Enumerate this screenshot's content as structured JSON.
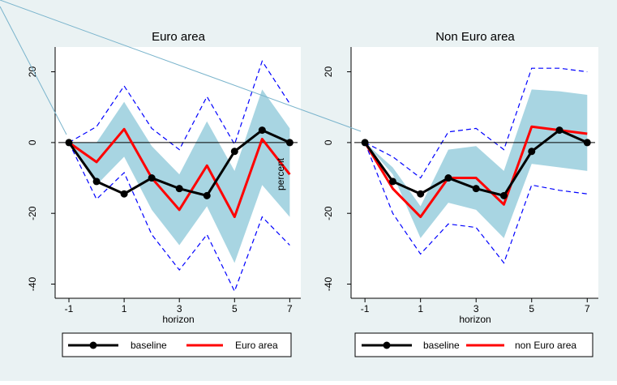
{
  "chart_data": [
    {
      "type": "line",
      "title": "Euro area",
      "xlabel": "horizon",
      "ylabel": "percent",
      "xlim": [
        -1.5,
        7.4
      ],
      "ylim": [
        -44,
        27
      ],
      "x_ticks": [
        -1,
        1,
        3,
        5,
        7
      ],
      "y_ticks": [
        20,
        0,
        -20,
        -40
      ],
      "x": [
        -1,
        0,
        1,
        2,
        3,
        4,
        5,
        6,
        7
      ],
      "series": [
        {
          "name": "baseline",
          "color": "#000000",
          "values": [
            0,
            -11,
            -14.5,
            -10,
            -13,
            -15,
            -2.5,
            3.5,
            0
          ]
        },
        {
          "name": "Euro area",
          "color": "#ff0000",
          "values": [
            0,
            -5.5,
            3.8,
            -10,
            -19,
            -6.5,
            -21,
            1,
            -9
          ]
        }
      ],
      "band": {
        "color": "#a8d5e2",
        "lower": [
          0,
          -12,
          -4,
          -19,
          -29,
          -18,
          -34,
          -12,
          -21
        ],
        "upper": [
          0,
          0,
          11.5,
          -1,
          -9,
          6,
          -8,
          15,
          4
        ]
      },
      "dashed_band": {
        "color": "#0000ff",
        "lower": [
          0,
          -16,
          -8.5,
          -26,
          -36,
          -26,
          -42,
          -21,
          -29
        ],
        "upper": [
          0,
          4.5,
          16,
          4,
          -2,
          13,
          -0.5,
          23,
          11
        ]
      },
      "legend": [
        "baseline",
        "Euro area"
      ],
      "legend_position": "bottom",
      "grid": false
    },
    {
      "type": "line",
      "title": "Non Euro area",
      "xlabel": "horizon",
      "ylabel": "",
      "xlim": [
        -1.5,
        7.4
      ],
      "ylim": [
        -44,
        27
      ],
      "x_ticks": [
        -1,
        1,
        3,
        5,
        7
      ],
      "y_ticks": [
        20,
        0,
        -20,
        -40
      ],
      "x": [
        -1,
        0,
        1,
        2,
        3,
        4,
        5,
        6,
        7
      ],
      "series": [
        {
          "name": "baseline",
          "color": "#000000",
          "values": [
            0,
            -11,
            -14.5,
            -10,
            -13,
            -15,
            -2.5,
            3.5,
            0
          ]
        },
        {
          "name": "non Euro area",
          "color": "#ff0000",
          "values": [
            0,
            -13,
            -21,
            -10,
            -10,
            -17.5,
            4.5,
            3.5,
            2.5
          ]
        }
      ],
      "band": {
        "color": "#a8d5e2",
        "lower": [
          0,
          -9,
          -27,
          -17,
          -19,
          -27,
          -6,
          -7,
          -8
        ],
        "upper": [
          0,
          -7,
          -18,
          -2,
          -1,
          -8,
          15,
          14.5,
          13.5
        ]
      },
      "dashed_band": {
        "color": "#0000ff",
        "lower": [
          0,
          -20,
          -31.5,
          -23,
          -24,
          -34,
          -12,
          -13.5,
          -14.5
        ],
        "upper": [
          0,
          -4,
          -10,
          3,
          4,
          -2,
          21,
          21,
          20
        ]
      },
      "legend": [
        "baseline",
        "non Euro area"
      ],
      "legend_position": "bottom",
      "grid": false
    }
  ],
  "colors": {
    "background": "#eaf2f3",
    "plot_background": "#ffffff",
    "zero_line": "#000000",
    "stray_line": "#7ab4cc"
  }
}
